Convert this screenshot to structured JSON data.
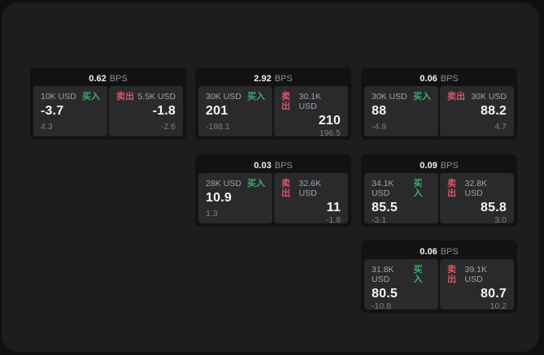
{
  "colors": {
    "buy_green": "#3fae6e",
    "sell_red": "#d95668"
  },
  "bps_unit": "BPS",
  "side_labels": {
    "buy": "买入",
    "sell": "卖出"
  },
  "cards": [
    {
      "bps": "0.62",
      "buy": {
        "amount": "10K USD",
        "tag": "买入",
        "value": "-3.7",
        "delta": "4.3"
      },
      "sell": {
        "amount": "5.5K USD",
        "tag": "卖出",
        "value": "-1.8",
        "delta": "-2.6"
      }
    },
    {
      "bps": "2.92",
      "buy": {
        "amount": "30K USD",
        "tag": "买入",
        "value": "201",
        "delta": "-188.1"
      },
      "sell": {
        "amount": "30.1K USD",
        "tag": "卖出",
        "value": "210",
        "delta": "196.5"
      }
    },
    {
      "bps": "0.06",
      "buy": {
        "amount": "30K USD",
        "tag": "买入",
        "value": "88",
        "delta": "-4.9"
      },
      "sell": {
        "amount": "30K USD",
        "tag": "卖出",
        "value": "88.2",
        "delta": "4.7"
      }
    },
    {
      "bps": "0.03",
      "buy": {
        "amount": "28K USD",
        "tag": "买入",
        "value": "10.9",
        "delta": "1.3"
      },
      "sell": {
        "amount": "32.6K USD",
        "tag": "卖出",
        "value": "11",
        "delta": "-1.8"
      }
    },
    {
      "bps": "0.09",
      "buy": {
        "amount": "34.1K USD",
        "tag": "买入",
        "value": "85.5",
        "delta": "-3.1"
      },
      "sell": {
        "amount": "32.8K USD",
        "tag": "卖出",
        "value": "85.8",
        "delta": "3.0"
      }
    },
    {
      "bps": "0.06",
      "buy": {
        "amount": "31.8K USD",
        "tag": "买入",
        "value": "80.5",
        "delta": "-10.8"
      },
      "sell": {
        "amount": "39.1K USD",
        "tag": "卖出",
        "value": "80.7",
        "delta": "10.2"
      }
    }
  ]
}
